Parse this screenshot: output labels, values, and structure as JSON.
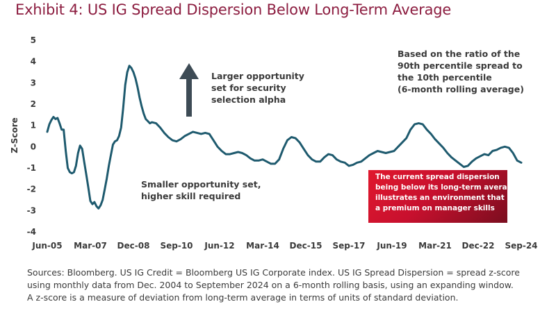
{
  "title": "Exhibit 4: US IG Spread Dispersion Below Long-Term Average",
  "colors": {
    "title": "#8c1d40",
    "line": "#1e5a6e",
    "callout": "#c8102e",
    "arrow": "#3d4b55",
    "text": "#3a3a3a"
  },
  "icons": {
    "arrow": "up-arrow-icon"
  },
  "annotations": {
    "top_center": [
      "Larger opportunity",
      "set for security",
      "selection alpha"
    ],
    "top_right": [
      "Based on the ratio of the",
      "90th percentile spread to",
      "the 10th percentile",
      "(6-month rolling average)"
    ],
    "bottom": [
      "Smaller opportunity set,",
      "higher skill required"
    ],
    "callout": [
      "The current spread dispersion",
      "being below its long-term average",
      "illustrates an environment that puts",
      "a premium on manager skills"
    ]
  },
  "source": [
    "Sources: Bloomberg. US IG Credit = Bloomberg US IG Corporate index. US IG Spread Dispersion = spread z-score",
    "using monthly data from Dec. 2004 to September 2024 on a 6-month rolling basis, using an expanding window.",
    "A z-score is a measure of deviation from long-term average in terms of units of standard deviation."
  ],
  "chart_data": {
    "type": "line",
    "title": "Exhibit 4: US IG Spread Dispersion Below Long-Term Average",
    "xlabel": "",
    "ylabel": "Z-Score",
    "ylim": [
      -4,
      5
    ],
    "yticks": [
      5,
      4,
      3,
      2,
      1,
      0,
      -1,
      -2,
      -3,
      -4
    ],
    "x_tick_labels": [
      "Jun-05",
      "Mar-07",
      "Dec-08",
      "Sep-10",
      "Jun-12",
      "Mar-14",
      "Dec-15",
      "Sep-17",
      "Jun-19",
      "Mar-21",
      "Dec-22",
      "Sep-24"
    ],
    "grid": false,
    "series": [
      {
        "values": [
          [
            "2005-06",
            0.7
          ],
          [
            "2005-07",
            1.05
          ],
          [
            "2005-08",
            1.25
          ],
          [
            "2005-09",
            1.4
          ],
          [
            "2005-10",
            1.3
          ],
          [
            "2005-11",
            1.35
          ],
          [
            "2005-12",
            1.1
          ],
          [
            "2006-01",
            0.8
          ],
          [
            "2006-02",
            0.8
          ],
          [
            "2006-03",
            -0.2
          ],
          [
            "2006-04",
            -1.0
          ],
          [
            "2006-05",
            -1.2
          ],
          [
            "2006-06",
            -1.25
          ],
          [
            "2006-07",
            -1.2
          ],
          [
            "2006-08",
            -0.9
          ],
          [
            "2006-09",
            -0.3
          ],
          [
            "2006-10",
            0.05
          ],
          [
            "2006-11",
            -0.1
          ],
          [
            "2006-12",
            -0.7
          ],
          [
            "2007-01",
            -1.3
          ],
          [
            "2007-02",
            -1.9
          ],
          [
            "2007-03",
            -2.55
          ],
          [
            "2007-04",
            -2.7
          ],
          [
            "2007-05",
            -2.6
          ],
          [
            "2007-06",
            -2.8
          ],
          [
            "2007-07",
            -2.9
          ],
          [
            "2007-08",
            -2.75
          ],
          [
            "2007-09",
            -2.5
          ],
          [
            "2007-10",
            -2.0
          ],
          [
            "2007-11",
            -1.5
          ],
          [
            "2007-12",
            -0.9
          ],
          [
            "2008-01",
            -0.4
          ],
          [
            "2008-02",
            0.1
          ],
          [
            "2008-03",
            0.25
          ],
          [
            "2008-04",
            0.3
          ],
          [
            "2008-05",
            0.5
          ],
          [
            "2008-06",
            0.9
          ],
          [
            "2008-07",
            1.8
          ],
          [
            "2008-08",
            2.9
          ],
          [
            "2008-09",
            3.5
          ],
          [
            "2008-10",
            3.8
          ],
          [
            "2008-11",
            3.7
          ],
          [
            "2008-12",
            3.5
          ],
          [
            "2009-01",
            3.2
          ],
          [
            "2009-02",
            2.8
          ],
          [
            "2009-03",
            2.3
          ],
          [
            "2009-04",
            1.9
          ],
          [
            "2009-05",
            1.55
          ],
          [
            "2009-06",
            1.3
          ],
          [
            "2009-07",
            1.2
          ],
          [
            "2009-08",
            1.1
          ],
          [
            "2009-09",
            1.15
          ],
          [
            "2009-11",
            1.1
          ],
          [
            "2010-01",
            0.9
          ],
          [
            "2010-03",
            0.65
          ],
          [
            "2010-05",
            0.45
          ],
          [
            "2010-07",
            0.3
          ],
          [
            "2010-09",
            0.25
          ],
          [
            "2010-11",
            0.35
          ],
          [
            "2011-01",
            0.5
          ],
          [
            "2011-03",
            0.6
          ],
          [
            "2011-05",
            0.7
          ],
          [
            "2011-07",
            0.65
          ],
          [
            "2011-09",
            0.6
          ],
          [
            "2011-11",
            0.65
          ],
          [
            "2012-01",
            0.6
          ],
          [
            "2012-03",
            0.3
          ],
          [
            "2012-05",
            0.0
          ],
          [
            "2012-07",
            -0.2
          ],
          [
            "2012-09",
            -0.35
          ],
          [
            "2012-11",
            -0.35
          ],
          [
            "2013-01",
            -0.3
          ],
          [
            "2013-03",
            -0.25
          ],
          [
            "2013-05",
            -0.3
          ],
          [
            "2013-07",
            -0.4
          ],
          [
            "2013-09",
            -0.55
          ],
          [
            "2013-11",
            -0.65
          ],
          [
            "2014-01",
            -0.65
          ],
          [
            "2014-03",
            -0.6
          ],
          [
            "2014-05",
            -0.7
          ],
          [
            "2014-07",
            -0.8
          ],
          [
            "2014-09",
            -0.8
          ],
          [
            "2014-11",
            -0.6
          ],
          [
            "2015-01",
            -0.1
          ],
          [
            "2015-03",
            0.3
          ],
          [
            "2015-05",
            0.45
          ],
          [
            "2015-07",
            0.4
          ],
          [
            "2015-09",
            0.2
          ],
          [
            "2015-11",
            -0.1
          ],
          [
            "2016-01",
            -0.4
          ],
          [
            "2016-03",
            -0.6
          ],
          [
            "2016-05",
            -0.7
          ],
          [
            "2016-07",
            -0.7
          ],
          [
            "2016-09",
            -0.5
          ],
          [
            "2016-11",
            -0.35
          ],
          [
            "2017-01",
            -0.4
          ],
          [
            "2017-03",
            -0.6
          ],
          [
            "2017-05",
            -0.7
          ],
          [
            "2017-07",
            -0.75
          ],
          [
            "2017-09",
            -0.9
          ],
          [
            "2017-11",
            -0.85
          ],
          [
            "2018-01",
            -0.75
          ],
          [
            "2018-03",
            -0.7
          ],
          [
            "2018-05",
            -0.55
          ],
          [
            "2018-07",
            -0.4
          ],
          [
            "2018-09",
            -0.3
          ],
          [
            "2018-11",
            -0.2
          ],
          [
            "2019-01",
            -0.25
          ],
          [
            "2019-03",
            -0.3
          ],
          [
            "2019-05",
            -0.25
          ],
          [
            "2019-07",
            -0.2
          ],
          [
            "2019-09",
            0.0
          ],
          [
            "2019-11",
            0.2
          ],
          [
            "2020-01",
            0.4
          ],
          [
            "2020-03",
            0.8
          ],
          [
            "2020-05",
            1.05
          ],
          [
            "2020-07",
            1.1
          ],
          [
            "2020-09",
            1.05
          ],
          [
            "2020-11",
            0.8
          ],
          [
            "2021-01",
            0.6
          ],
          [
            "2021-03",
            0.35
          ],
          [
            "2021-05",
            0.15
          ],
          [
            "2021-07",
            -0.05
          ],
          [
            "2021-09",
            -0.3
          ],
          [
            "2021-11",
            -0.5
          ],
          [
            "2022-01",
            -0.65
          ],
          [
            "2022-03",
            -0.8
          ],
          [
            "2022-05",
            -0.95
          ],
          [
            "2022-07",
            -0.9
          ],
          [
            "2022-09",
            -0.7
          ],
          [
            "2022-11",
            -0.55
          ],
          [
            "2023-01",
            -0.45
          ],
          [
            "2023-03",
            -0.35
          ],
          [
            "2023-05",
            -0.4
          ],
          [
            "2023-07",
            -0.2
          ],
          [
            "2023-09",
            -0.15
          ],
          [
            "2023-11",
            -0.05
          ],
          [
            "2024-01",
            0.0
          ],
          [
            "2024-03",
            -0.05
          ],
          [
            "2024-05",
            -0.3
          ],
          [
            "2024-07",
            -0.65
          ],
          [
            "2024-09",
            -0.75
          ]
        ]
      }
    ]
  }
}
